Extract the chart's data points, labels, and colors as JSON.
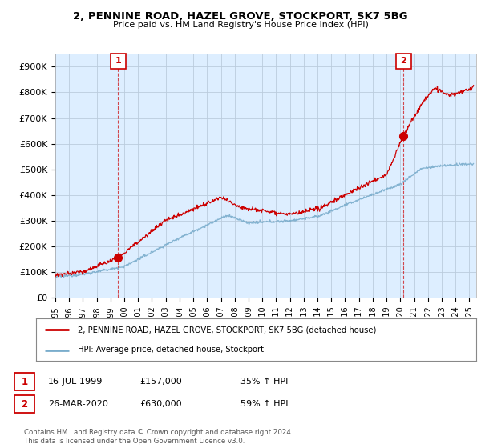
{
  "title": "2, PENNINE ROAD, HAZEL GROVE, STOCKPORT, SK7 5BG",
  "subtitle": "Price paid vs. HM Land Registry's House Price Index (HPI)",
  "ylabel_ticks": [
    "£0",
    "£100K",
    "£200K",
    "£300K",
    "£400K",
    "£500K",
    "£600K",
    "£700K",
    "£800K",
    "£900K"
  ],
  "ytick_vals": [
    0,
    100000,
    200000,
    300000,
    400000,
    500000,
    600000,
    700000,
    800000,
    900000
  ],
  "ylim": [
    0,
    950000
  ],
  "xlim_start": 1995.0,
  "xlim_end": 2025.5,
  "sale1_x": 1999.54,
  "sale1_y": 157000,
  "sale1_label": "1",
  "sale2_x": 2020.23,
  "sale2_y": 630000,
  "sale2_label": "2",
  "line_color_property": "#cc0000",
  "line_color_hpi": "#7aadcc",
  "plot_bg_color": "#ddeeff",
  "legend_label_property": "2, PENNINE ROAD, HAZEL GROVE, STOCKPORT, SK7 5BG (detached house)",
  "legend_label_hpi": "HPI: Average price, detached house, Stockport",
  "annotation1_date": "16-JUL-1999",
  "annotation1_price": "£157,000",
  "annotation1_hpi": "35% ↑ HPI",
  "annotation2_date": "26-MAR-2020",
  "annotation2_price": "£630,000",
  "annotation2_hpi": "59% ↑ HPI",
  "footer": "Contains HM Land Registry data © Crown copyright and database right 2024.\nThis data is licensed under the Open Government Licence v3.0.",
  "background_color": "#ffffff",
  "grid_color": "#bbccdd",
  "xtick_years": [
    1995,
    1996,
    1997,
    1998,
    1999,
    2000,
    2001,
    2002,
    2003,
    2004,
    2005,
    2006,
    2007,
    2008,
    2009,
    2010,
    2011,
    2012,
    2013,
    2014,
    2015,
    2016,
    2017,
    2018,
    2019,
    2020,
    2021,
    2022,
    2023,
    2024,
    2025
  ]
}
